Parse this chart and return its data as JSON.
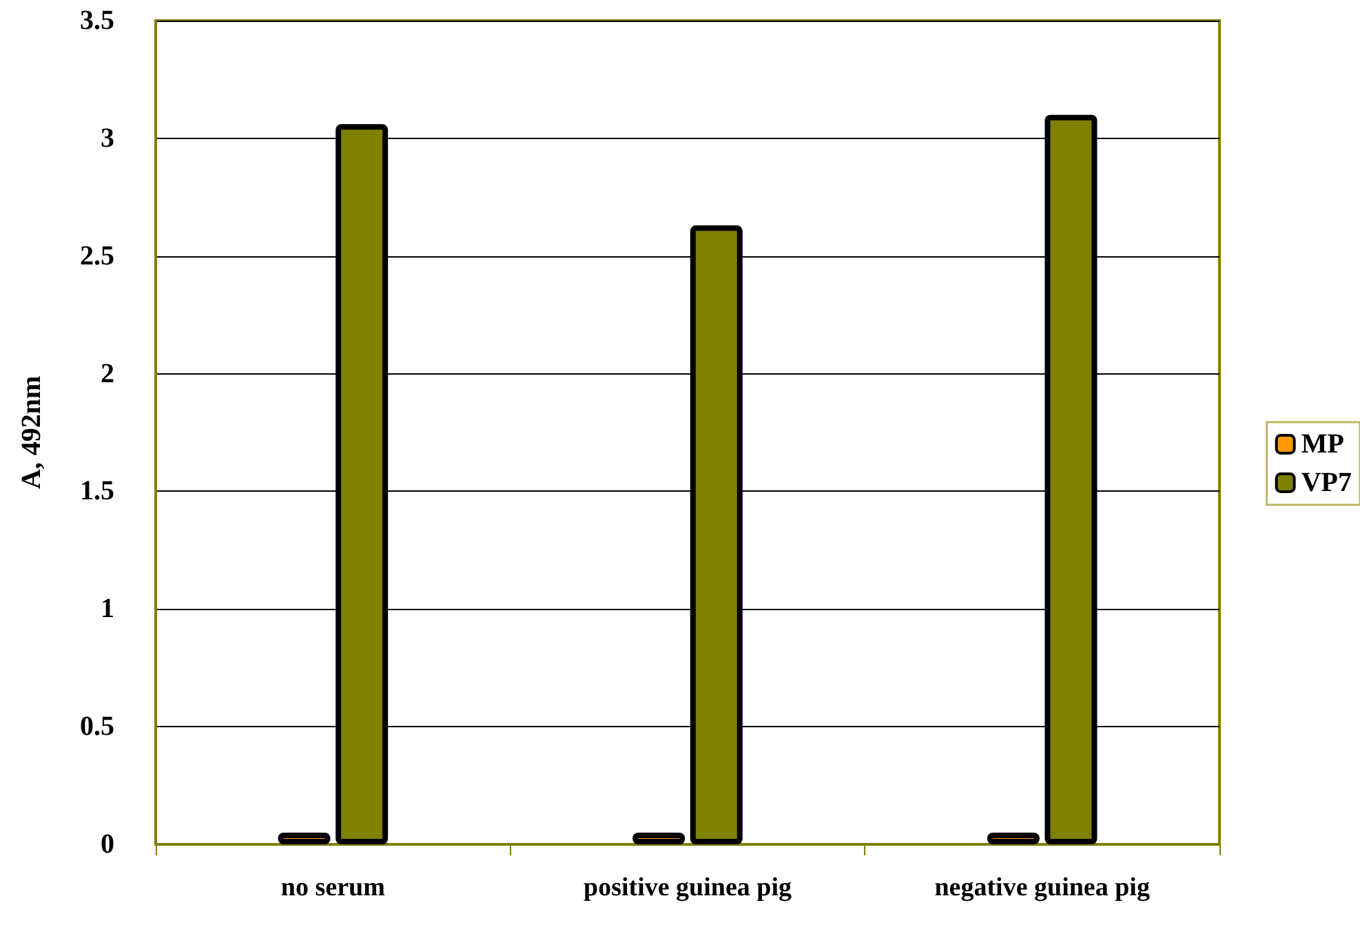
{
  "chart_data": {
    "type": "bar",
    "ylabel": "A, 492nm",
    "categories": [
      "no serum",
      "positive guinea pig",
      "negative guinea pig"
    ],
    "series": [
      {
        "name": "MP",
        "color": "#ff9900",
        "values": [
          0.05,
          0.05,
          0.05
        ]
      },
      {
        "name": "VP7",
        "color": "#808000",
        "values": [
          3.06,
          2.63,
          3.1
        ]
      }
    ],
    "ylim": [
      0,
      3.5
    ],
    "yticks": [
      0,
      0.5,
      1,
      1.5,
      2,
      2.5,
      3,
      3.5
    ],
    "grid": "y",
    "legend": "right"
  }
}
